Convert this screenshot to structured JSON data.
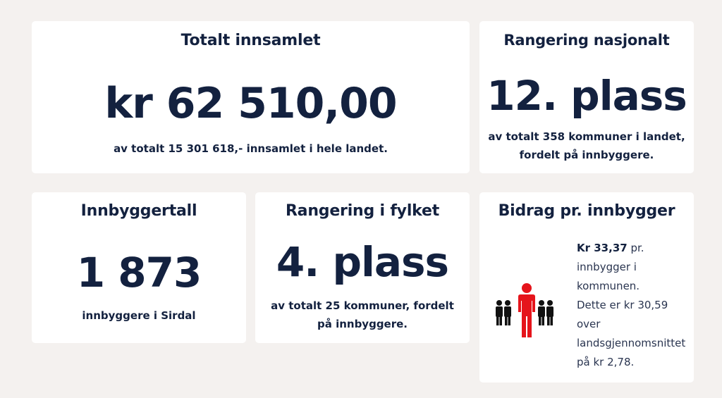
{
  "total": {
    "title": "Totalt innsamlet",
    "value": "kr 62 510,00",
    "note": "av totalt 15 301 618,- innsamlet i hele landet."
  },
  "national_rank": {
    "title": "Rangering nasjonalt",
    "value": "12. plass",
    "note": "av totalt 358 kommuner i landet, fordelt på innbyggere."
  },
  "population": {
    "title": "Innbyggertall",
    "value": "1 873",
    "note": "innbyggere i Sirdal"
  },
  "county_rank": {
    "title": "Rangering i fylket",
    "value": "4. plass",
    "note": "av totalt 25 kommuner, fordelt på innbyggere."
  },
  "per_capita": {
    "title": "Bidrag pr. innbygger",
    "amount": "Kr 33,37",
    "text1": " pr. innbygger i kommunen.",
    "text2": "Dette er kr 30,59 over landsgjennomsnittet på kr 2,78.",
    "icon": "people-highlight-icon",
    "colors": {
      "highlight": "#e5141b",
      "people": "#111111"
    }
  }
}
